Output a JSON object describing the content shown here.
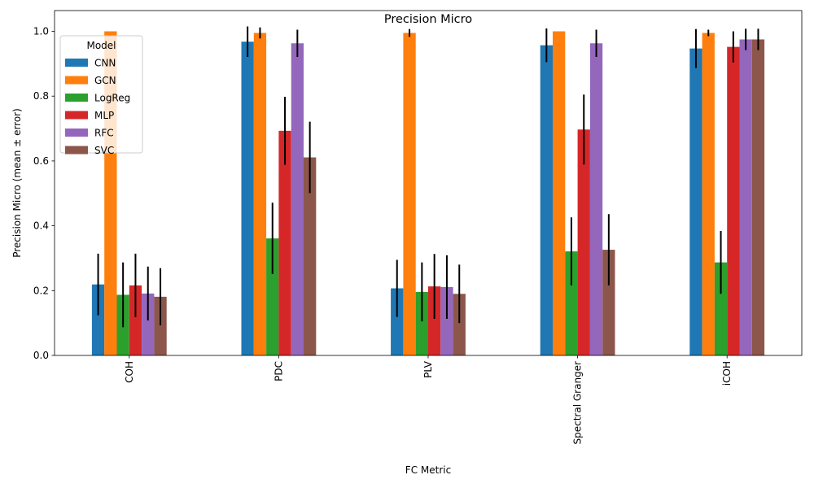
{
  "chart_data": {
    "type": "bar",
    "title": "Precision Micro",
    "xlabel": "FC Metric",
    "ylabel": "Precision Micro (mean ± error)",
    "ylim": [
      0,
      1.064
    ],
    "yticks": [
      0.0,
      0.2,
      0.4,
      0.6,
      0.8,
      1.0
    ],
    "ytick_labels": [
      "0.0",
      "0.2",
      "0.4",
      "0.6",
      "0.8",
      "1.0"
    ],
    "categories": [
      "COH",
      "PDC",
      "PLV",
      "Spectral Granger",
      "iCOH"
    ],
    "legend": {
      "title": "Model",
      "placement": "upper-left"
    },
    "grid": false,
    "series": [
      {
        "name": "CNN",
        "color": "#1f77b4",
        "values": [
          0.219,
          0.968,
          0.207,
          0.957,
          0.947
        ],
        "errors": [
          0.095,
          0.047,
          0.088,
          0.052,
          0.06
        ]
      },
      {
        "name": "GCN",
        "color": "#ff7f0e",
        "values": [
          1.0,
          0.995,
          0.995,
          1.0,
          0.995
        ],
        "errors": [
          0.0,
          0.017,
          0.012,
          0.0,
          0.01
        ]
      },
      {
        "name": "LogReg",
        "color": "#2ca02c",
        "values": [
          0.187,
          0.361,
          0.196,
          0.321,
          0.287
        ],
        "errors": [
          0.1,
          0.11,
          0.091,
          0.105,
          0.097
        ]
      },
      {
        "name": "MLP",
        "color": "#d62728",
        "values": [
          0.216,
          0.693,
          0.213,
          0.697,
          0.952
        ],
        "errors": [
          0.098,
          0.105,
          0.1,
          0.108,
          0.048
        ]
      },
      {
        "name": "RFC",
        "color": "#9467bd",
        "values": [
          0.191,
          0.963,
          0.211,
          0.963,
          0.975
        ],
        "errors": [
          0.083,
          0.042,
          0.098,
          0.042,
          0.033
        ]
      },
      {
        "name": "SVC",
        "color": "#8c564b",
        "values": [
          0.181,
          0.611,
          0.19,
          0.326,
          0.975
        ],
        "errors": [
          0.088,
          0.11,
          0.09,
          0.11,
          0.033
        ]
      }
    ]
  }
}
